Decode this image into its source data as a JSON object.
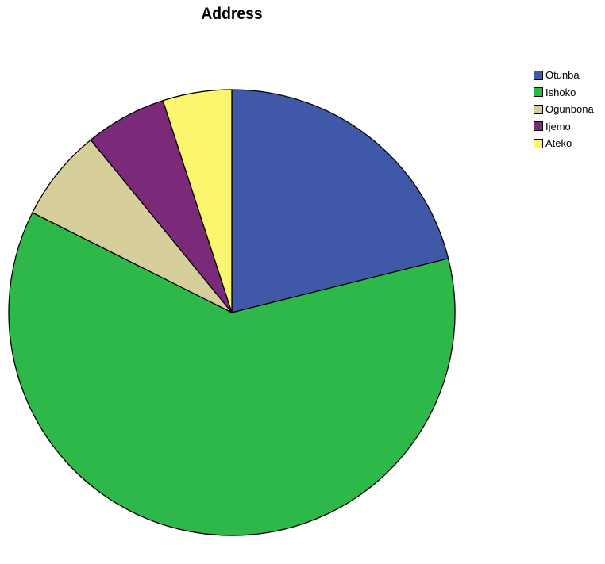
{
  "chart_data": {
    "type": "pie",
    "title": "Address",
    "categories": [
      "Otunba",
      "Ishoko",
      "Ogunbona",
      "Ijemo",
      "Ateko"
    ],
    "values": [
      21.1,
      61.3,
      6.7,
      5.9,
      5.0
    ],
    "colors": [
      "#3f58a8",
      "#2fb84a",
      "#d6cf9b",
      "#7b2a7a",
      "#fbf66d"
    ],
    "start_angle": "12 o'clock",
    "direction": "clockwise",
    "legend_position": "top-right"
  }
}
